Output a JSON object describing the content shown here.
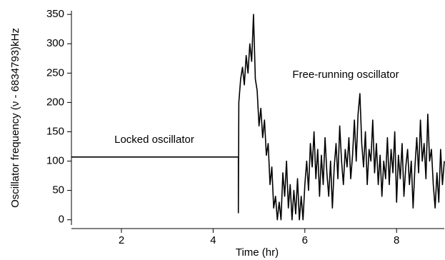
{
  "chart_data": {
    "type": "line",
    "x_label": "Time (hr)",
    "y_label": "Oscillator frequency (ν - 6834793)kHz",
    "annotations": [
      "Locked oscillator",
      "Free-running oscillator"
    ],
    "xlim": [
      0.91,
      9.04
    ],
    "ylim": [
      -15,
      360
    ],
    "xticks": [
      2,
      4,
      6,
      8
    ],
    "yticks": [
      0,
      50,
      100,
      150,
      200,
      250,
      300,
      350
    ],
    "series": [
      {
        "color": "#000000",
        "x": [
          0.91,
          4.55,
          4.55,
          4.56,
          4.6,
          4.64,
          4.68,
          4.72,
          4.76,
          4.8,
          4.84,
          4.88,
          4.92,
          4.96,
          5.0,
          5.04,
          5.08,
          5.12,
          5.16,
          5.2,
          5.24,
          5.28,
          5.32,
          5.36,
          5.4,
          5.44,
          5.48,
          5.52,
          5.56,
          5.6,
          5.64,
          5.68,
          5.72,
          5.76,
          5.8,
          5.84,
          5.88,
          5.92,
          5.96,
          6.0,
          6.04,
          6.08,
          6.12,
          6.16,
          6.2,
          6.24,
          6.28,
          6.32,
          6.36,
          6.4,
          6.44,
          6.48,
          6.52,
          6.56,
          6.6,
          6.64,
          6.68,
          6.72,
          6.76,
          6.8,
          6.84,
          6.88,
          6.92,
          6.96,
          7.0,
          7.04,
          7.08,
          7.12,
          7.16,
          7.2,
          7.24,
          7.28,
          7.32,
          7.36,
          7.4,
          7.44,
          7.48,
          7.52,
          7.56,
          7.6,
          7.64,
          7.68,
          7.72,
          7.76,
          7.8,
          7.84,
          7.88,
          7.92,
          7.96,
          8.0,
          8.04,
          8.08,
          8.12,
          8.16,
          8.2,
          8.24,
          8.28,
          8.32,
          8.36,
          8.4,
          8.44,
          8.48,
          8.52,
          8.56,
          8.6,
          8.64,
          8.68,
          8.72,
          8.76,
          8.8,
          8.84,
          8.88,
          8.92,
          8.96,
          9.0,
          9.04
        ],
        "values": [
          107,
          107,
          12,
          200,
          240,
          260,
          230,
          280,
          250,
          300,
          270,
          350,
          240,
          220,
          160,
          190,
          140,
          170,
          110,
          130,
          60,
          90,
          20,
          40,
          0,
          30,
          0,
          80,
          40,
          100,
          20,
          60,
          0,
          50,
          10,
          70,
          0,
          40,
          0,
          60,
          100,
          50,
          130,
          90,
          150,
          70,
          120,
          40,
          110,
          60,
          140,
          80,
          40,
          100,
          20,
          90,
          130,
          70,
          160,
          100,
          60,
          120,
          90,
          140,
          70,
          110,
          170,
          100,
          180,
          215,
          130,
          90,
          150,
          60,
          120,
          100,
          170,
          80,
          130,
          60,
          110,
          40,
          100,
          70,
          140,
          60,
          120,
          80,
          150,
          30,
          110,
          70,
          130,
          40,
          90,
          120,
          60,
          100,
          20,
          90,
          140,
          80,
          170,
          100,
          130,
          70,
          180,
          100,
          120,
          60,
          20,
          80,
          30,
          120,
          60,
          100
        ]
      }
    ]
  }
}
